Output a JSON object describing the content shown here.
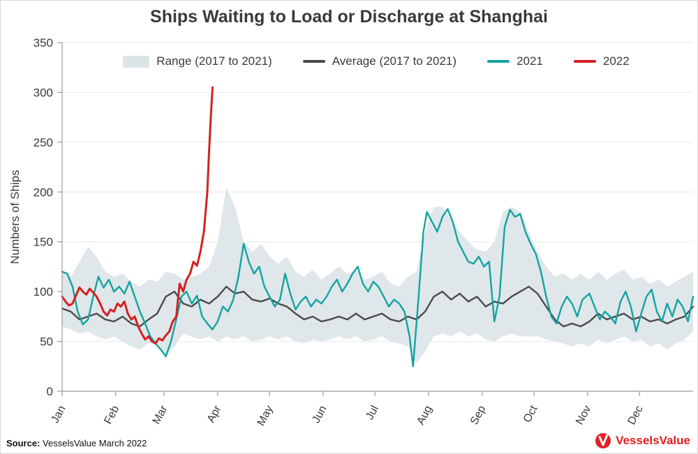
{
  "title": "Ships Waiting to Load or Discharge at Shanghai",
  "source": {
    "prefix": "Source:",
    "text": "VesselsValue March 2022"
  },
  "brand": {
    "name": "VesselsValue",
    "color": "#e31e24"
  },
  "chart_data": {
    "type": "line",
    "title": "Ships Waiting to Load or Discharge at Shanghai",
    "xlabel": "",
    "ylabel": "Numbers of Ships",
    "ylim": [
      0,
      350
    ],
    "yticks": [
      0,
      50,
      100,
      150,
      200,
      250,
      300,
      350
    ],
    "xlim": [
      0,
      365
    ],
    "x_unit": "day_of_year",
    "grid": "horizontal",
    "legend_position": "top",
    "months": {
      "labels": [
        "Jan",
        "Feb",
        "Mar",
        "Apr",
        "May",
        "Jun",
        "Jul",
        "Aug",
        "Sep",
        "Oct",
        "Nov",
        "Dec"
      ],
      "days": [
        0,
        31,
        59,
        90,
        120,
        151,
        181,
        212,
        243,
        273,
        304,
        334
      ]
    },
    "series": [
      {
        "name": "Range (2017 to 2021)",
        "type": "band",
        "color": "#dce4e8",
        "x": [
          0,
          5,
          10,
          15,
          20,
          25,
          30,
          35,
          40,
          45,
          50,
          55,
          60,
          65,
          70,
          75,
          80,
          85,
          90,
          95,
          100,
          105,
          110,
          115,
          120,
          125,
          130,
          135,
          140,
          145,
          150,
          155,
          160,
          165,
          170,
          175,
          180,
          185,
          190,
          195,
          200,
          205,
          210,
          215,
          220,
          225,
          230,
          235,
          240,
          245,
          250,
          255,
          260,
          265,
          270,
          275,
          280,
          285,
          290,
          295,
          300,
          305,
          310,
          315,
          320,
          325,
          330,
          335,
          340,
          345,
          350,
          355,
          360,
          365
        ],
        "lower": [
          65,
          62,
          58,
          60,
          55,
          52,
          55,
          50,
          45,
          42,
          48,
          48,
          35,
          45,
          58,
          55,
          52,
          55,
          50,
          55,
          52,
          55,
          50,
          52,
          55,
          52,
          55,
          50,
          48,
          52,
          50,
          52,
          55,
          52,
          55,
          50,
          52,
          55,
          50,
          48,
          45,
          28,
          40,
          55,
          58,
          55,
          60,
          55,
          58,
          52,
          50,
          55,
          58,
          55,
          55,
          55,
          52,
          50,
          48,
          45,
          48,
          45,
          52,
          48,
          52,
          55,
          50,
          52,
          45,
          48,
          42,
          48,
          52,
          60
        ],
        "upper": [
          120,
          115,
          130,
          145,
          135,
          120,
          115,
          118,
          110,
          105,
          112,
          110,
          120,
          118,
          112,
          115,
          118,
          125,
          150,
          205,
          185,
          150,
          140,
          148,
          135,
          128,
          135,
          120,
          115,
          122,
          112,
          118,
          125,
          118,
          122,
          112,
          115,
          120,
          108,
          105,
          115,
          120,
          160,
          185,
          185,
          172,
          160,
          150,
          142,
          140,
          150,
          180,
          185,
          180,
          160,
          140,
          125,
          115,
          118,
          112,
          118,
          112,
          120,
          112,
          118,
          122,
          112,
          115,
          108,
          112,
          105,
          110,
          115,
          120
        ]
      },
      {
        "name": "Average (2017 to 2021)",
        "type": "line",
        "color": "#4a4a4a",
        "width": 2.4,
        "x": [
          0,
          5,
          10,
          15,
          20,
          25,
          30,
          35,
          40,
          45,
          50,
          55,
          60,
          65,
          70,
          75,
          80,
          85,
          90,
          95,
          100,
          105,
          110,
          115,
          120,
          125,
          130,
          135,
          140,
          145,
          150,
          155,
          160,
          165,
          170,
          175,
          180,
          185,
          190,
          195,
          200,
          205,
          210,
          215,
          220,
          225,
          230,
          235,
          240,
          245,
          250,
          255,
          260,
          265,
          270,
          275,
          280,
          285,
          290,
          295,
          300,
          305,
          310,
          315,
          320,
          325,
          330,
          335,
          340,
          345,
          350,
          355,
          360,
          365
        ],
        "y": [
          83,
          80,
          72,
          75,
          78,
          72,
          70,
          75,
          68,
          65,
          72,
          78,
          95,
          100,
          88,
          85,
          92,
          88,
          95,
          105,
          98,
          100,
          92,
          90,
          93,
          88,
          85,
          78,
          72,
          75,
          70,
          72,
          75,
          72,
          78,
          72,
          75,
          78,
          72,
          70,
          75,
          72,
          80,
          95,
          100,
          92,
          98,
          90,
          95,
          85,
          90,
          88,
          95,
          100,
          105,
          98,
          85,
          72,
          65,
          68,
          65,
          70,
          78,
          72,
          75,
          78,
          72,
          75,
          70,
          72,
          68,
          72,
          75,
          85
        ]
      },
      {
        "name": "2021",
        "type": "line",
        "color": "#12a3a0",
        "width": 2.4,
        "x": [
          0,
          3,
          6,
          9,
          12,
          15,
          18,
          21,
          24,
          27,
          30,
          33,
          36,
          39,
          42,
          45,
          48,
          51,
          54,
          57,
          60,
          63,
          66,
          69,
          72,
          75,
          78,
          81,
          84,
          87,
          90,
          93,
          96,
          99,
          102,
          105,
          108,
          111,
          114,
          117,
          120,
          123,
          126,
          129,
          132,
          135,
          138,
          141,
          144,
          147,
          150,
          153,
          156,
          159,
          162,
          165,
          168,
          171,
          174,
          177,
          180,
          183,
          186,
          189,
          192,
          195,
          198,
          201,
          203,
          206,
          209,
          211,
          214,
          217,
          220,
          223,
          226,
          229,
          232,
          235,
          238,
          241,
          244,
          247,
          250,
          253,
          256,
          259,
          262,
          265,
          268,
          271,
          274,
          277,
          280,
          283,
          286,
          289,
          292,
          295,
          298,
          301,
          305,
          308,
          311,
          314,
          317,
          320,
          323,
          326,
          329,
          332,
          335,
          338,
          341,
          344,
          347,
          350,
          353,
          356,
          359,
          362,
          365
        ],
        "y": [
          120,
          118,
          105,
          80,
          67,
          72,
          95,
          115,
          104,
          112,
          100,
          105,
          98,
          110,
          95,
          80,
          68,
          55,
          48,
          42,
          35,
          50,
          72,
          95,
          100,
          88,
          96,
          75,
          68,
          62,
          70,
          85,
          80,
          92,
          115,
          148,
          130,
          118,
          125,
          105,
          95,
          85,
          92,
          118,
          98,
          82,
          90,
          95,
          85,
          92,
          88,
          95,
          105,
          112,
          100,
          108,
          118,
          125,
          108,
          100,
          110,
          105,
          95,
          85,
          92,
          88,
          80,
          55,
          25,
          90,
          160,
          180,
          170,
          160,
          175,
          183,
          170,
          150,
          140,
          130,
          128,
          135,
          125,
          130,
          70,
          95,
          165,
          182,
          175,
          178,
          160,
          148,
          138,
          120,
          95,
          75,
          68,
          85,
          95,
          88,
          75,
          92,
          98,
          85,
          72,
          80,
          75,
          68,
          90,
          100,
          85,
          60,
          78,
          95,
          102,
          80,
          70,
          88,
          75,
          92,
          85,
          70,
          95
        ]
      },
      {
        "name": "2022",
        "type": "line",
        "color": "#d32020",
        "width": 3,
        "x": [
          0,
          2,
          4,
          6,
          8,
          10,
          12,
          14,
          16,
          18,
          20,
          22,
          24,
          26,
          28,
          30,
          32,
          34,
          36,
          38,
          40,
          42,
          44,
          46,
          48,
          50,
          52,
          54,
          56,
          58,
          60,
          62,
          64,
          66,
          68,
          70,
          72,
          74,
          76,
          78,
          80,
          82,
          84,
          85,
          86,
          87
        ],
        "y": [
          95,
          90,
          86,
          88,
          96,
          104,
          100,
          97,
          103,
          99,
          95,
          88,
          80,
          76,
          82,
          80,
          88,
          85,
          90,
          78,
          72,
          75,
          65,
          58,
          52,
          55,
          50,
          48,
          53,
          51,
          56,
          60,
          70,
          75,
          108,
          100,
          112,
          118,
          130,
          126,
          140,
          160,
          200,
          240,
          275,
          305
        ]
      }
    ]
  }
}
